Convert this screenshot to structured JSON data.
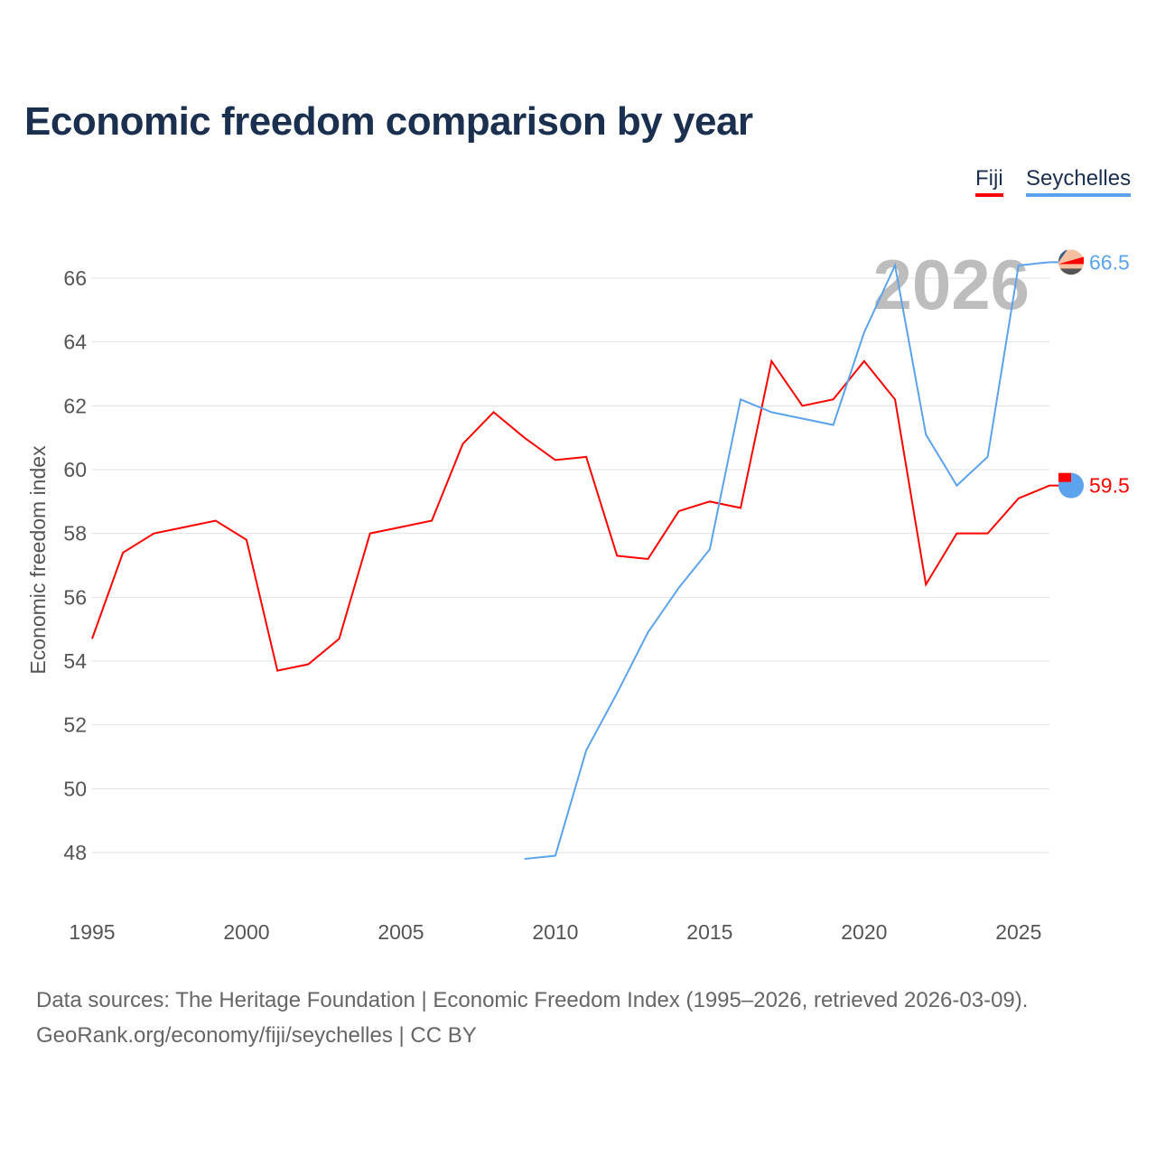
{
  "title": "Economic freedom comparison by year",
  "source_line1": "Data sources: The Heritage Foundation | Economic Freedom Index (1995–2026, retrieved 2026-03-09).",
  "source_line2": "GeoRank.org/economy/fiji/seychelles | CC BY",
  "chart_data": {
    "type": "line",
    "title": "Economic freedom comparison by year",
    "xlabel": "",
    "ylabel": "Economic freedom index",
    "xlim": [
      1995,
      2026
    ],
    "ylim": [
      46.8,
      67.5
    ],
    "xticks": [
      1995,
      2000,
      2005,
      2010,
      2015,
      2020,
      2025
    ],
    "yticks": [
      48,
      50,
      52,
      54,
      56,
      58,
      60,
      62,
      64,
      66
    ],
    "grid": true,
    "legend_position": "top-right",
    "year_watermark": "2026",
    "series": [
      {
        "name": "Fiji",
        "color": "#ff0000",
        "end_label": "59.5",
        "x": [
          1995,
          1996,
          1997,
          1998,
          1999,
          2000,
          2001,
          2002,
          2003,
          2004,
          2005,
          2006,
          2007,
          2008,
          2009,
          2010,
          2011,
          2012,
          2013,
          2014,
          2015,
          2016,
          2017,
          2018,
          2019,
          2020,
          2021,
          2022,
          2023,
          2024,
          2025,
          2026
        ],
        "values": [
          54.7,
          57.4,
          58.0,
          58.2,
          58.4,
          57.8,
          53.7,
          53.9,
          54.7,
          58.0,
          58.2,
          58.4,
          60.8,
          61.8,
          61.0,
          60.3,
          60.4,
          57.3,
          57.2,
          58.7,
          59.0,
          58.8,
          63.4,
          62.0,
          62.2,
          63.4,
          62.2,
          56.4,
          58.0,
          58.0,
          59.1,
          59.5
        ]
      },
      {
        "name": "Seychelles",
        "color": "#5ba3ec",
        "end_label": "66.5",
        "x": [
          2009,
          2010,
          2011,
          2012,
          2013,
          2014,
          2015,
          2016,
          2017,
          2018,
          2019,
          2020,
          2021,
          2022,
          2023,
          2024,
          2025,
          2026
        ],
        "values": [
          47.8,
          47.9,
          51.2,
          53.0,
          54.9,
          56.3,
          57.5,
          62.2,
          61.8,
          61.6,
          61.4,
          64.3,
          66.4,
          61.1,
          59.5,
          60.4,
          66.4,
          66.5
        ]
      }
    ]
  }
}
